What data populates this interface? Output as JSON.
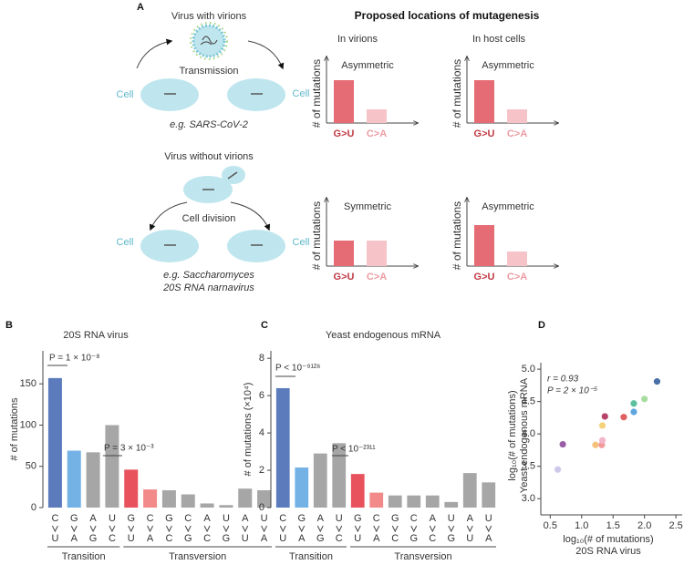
{
  "panel_a": {
    "letter": "A",
    "title": "Proposed locations of mutagenesis",
    "columns": [
      "In virions",
      "In host cells"
    ],
    "top": {
      "title": "Virus with virions",
      "process": "Transmission",
      "cell_label": "Cell",
      "example": "e.g. SARS-CoV-2"
    },
    "bottom": {
      "title": "Virus without virions",
      "process": "Cell division",
      "cell_label": "Cell",
      "example": [
        "e.g. Saccharomyces",
        "20S RNA narnavirus"
      ]
    },
    "minis": [
      {
        "label": "Asymmetric",
        "ylabel": "# of mutations",
        "categories": [
          "G>U",
          "C>A"
        ]
      },
      {
        "label": "Asymmetric",
        "ylabel": "# of mutations",
        "categories": [
          "G>U",
          "C>A"
        ]
      },
      {
        "label": "Symmetric",
        "ylabel": "# of mutations",
        "categories": [
          "G>U",
          "C>A"
        ]
      },
      {
        "label": "Asymmetric",
        "ylabel": "# of mutations",
        "categories": [
          "G>U",
          "C>A"
        ]
      }
    ]
  },
  "chart_data": [
    {
      "type": "bar",
      "panel": "B",
      "title": "20S RNA virus",
      "ylabel": "# of mutations",
      "categories": [
        [
          "C",
          "U"
        ],
        [
          "G",
          "A"
        ],
        [
          "A",
          "G"
        ],
        [
          "U",
          "C"
        ],
        [
          "G",
          "U"
        ],
        [
          "C",
          "A"
        ],
        [
          "G",
          "C"
        ],
        [
          "C",
          "G"
        ],
        [
          "A",
          "C"
        ],
        [
          "U",
          "G"
        ],
        [
          "A",
          "U"
        ],
        [
          "U",
          "A"
        ]
      ],
      "values": [
        157,
        69,
        67,
        100,
        46,
        22,
        21,
        16,
        5,
        3,
        23,
        21
      ],
      "colors": [
        "#5b7bbd",
        "#74b2e6",
        "#a6a6a6",
        "#a6a6a6",
        "#e8525d",
        "#f28a8a",
        "#a6a6a6",
        "#a6a6a6",
        "#a6a6a6",
        "#a6a6a6",
        "#a6a6a6",
        "#a6a6a6"
      ],
      "groups": [
        "Transition",
        "Transversion"
      ],
      "annotations": [
        "P = 1 × 10⁻⁸",
        "P = 3 × 10⁻³"
      ],
      "ylim": [
        0,
        190
      ],
      "yticks": [
        0,
        50,
        100,
        150
      ]
    },
    {
      "type": "bar",
      "panel": "C",
      "title": "Yeast endogenous mRNA",
      "ylabel": "# of mutations (×10⁴)",
      "categories": [
        [
          "C",
          "U"
        ],
        [
          "G",
          "A"
        ],
        [
          "A",
          "G"
        ],
        [
          "U",
          "C"
        ],
        [
          "G",
          "U"
        ],
        [
          "C",
          "A"
        ],
        [
          "G",
          "C"
        ],
        [
          "C",
          "G"
        ],
        [
          "A",
          "C"
        ],
        [
          "U",
          "G"
        ],
        [
          "A",
          "U"
        ],
        [
          "U",
          "A"
        ]
      ],
      "values": [
        6.4,
        2.15,
        2.9,
        3.45,
        1.8,
        0.8,
        0.65,
        0.65,
        0.65,
        0.3,
        1.85,
        1.35
      ],
      "colors": [
        "#5b7bbd",
        "#74b2e6",
        "#a6a6a6",
        "#a6a6a6",
        "#e8525d",
        "#f28a8a",
        "#a6a6a6",
        "#a6a6a6",
        "#a6a6a6",
        "#a6a6a6",
        "#a6a6a6",
        "#a6a6a6"
      ],
      "groups": [
        "Transition",
        "Transversion"
      ],
      "annotations": [
        "P < 10⁻⁹¹²⁶",
        "P < 10⁻²³¹¹"
      ],
      "ylim": [
        0,
        8.4
      ],
      "yticks": [
        0,
        2,
        4,
        6,
        8
      ]
    },
    {
      "type": "scatter",
      "panel": "D",
      "xlabel": [
        "log₁₀(# of mutations)",
        "20S RNA virus"
      ],
      "ylabel": [
        "log₁₀(# of mutations)",
        "Yeast endogenous mRNA"
      ],
      "annotations": [
        "r = 0.93",
        "P = 2 × 10⁻⁵"
      ],
      "x": [
        0.62,
        0.7,
        1.22,
        1.32,
        1.33,
        1.33,
        1.37,
        1.67,
        1.83,
        1.83,
        2.0,
        2.2
      ],
      "y": [
        3.45,
        3.84,
        3.83,
        3.83,
        3.9,
        4.13,
        4.27,
        4.26,
        4.34,
        4.47,
        4.54,
        4.81
      ],
      "colors": [
        "#cfc8ea",
        "#9a5fa8",
        "#f4c27a",
        "#f19a9a",
        "#f2b5c9",
        "#f5d27a",
        "#b8436a",
        "#e06060",
        "#5ea6e0",
        "#5cc0a0",
        "#a8dca0",
        "#4a6fa8"
      ],
      "xlim": [
        0.35,
        2.6
      ],
      "xticks": [
        0.5,
        {
          "value": 1,
          "label": "1.0"
        },
        1.5,
        {
          "value": 2,
          "label": "2.0"
        },
        2.5
      ],
      "ylim": [
        2.75,
        5.1
      ],
      "yticks": [
        {
          "value": 3,
          "label": "3.0"
        },
        3.5,
        {
          "value": 4,
          "label": "4.0"
        },
        4.5,
        {
          "value": 5,
          "label": "5.0"
        }
      ]
    }
  ]
}
